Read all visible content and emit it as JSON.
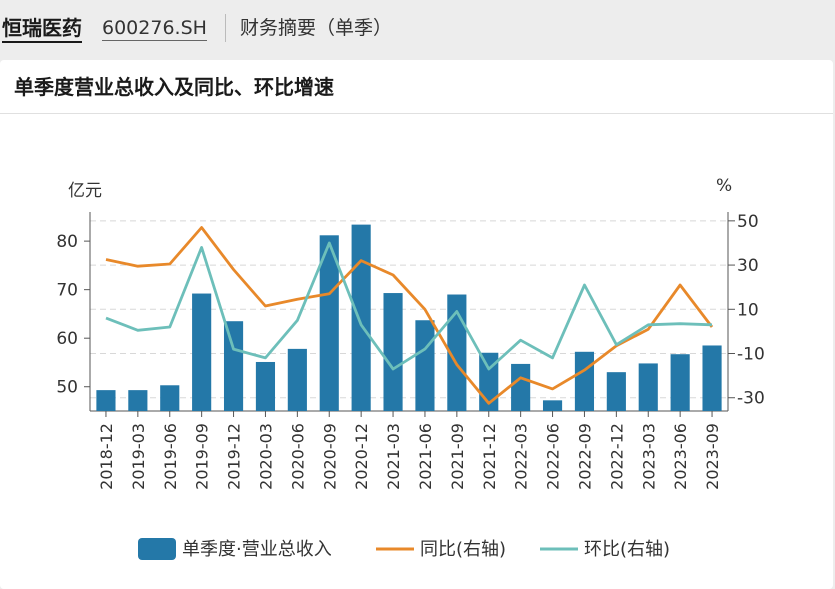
{
  "header": {
    "company": "恒瑞医药",
    "code": "600276.SH",
    "section": "财务摘要（单季）"
  },
  "chart_data": {
    "type": "bar",
    "title": "单季度营业总收入及同比、环比增速",
    "ylabel_left": "亿元",
    "ylabel_right": "%",
    "categories": [
      "2018-12",
      "2019-03",
      "2019-06",
      "2019-09",
      "2019-12",
      "2020-03",
      "2020-06",
      "2020-09",
      "2020-12",
      "2021-03",
      "2021-06",
      "2021-09",
      "2021-12",
      "2022-03",
      "2022-06",
      "2022-09",
      "2022-12",
      "2023-03",
      "2023-06",
      "2023-09"
    ],
    "ylim_left": [
      45,
      86
    ],
    "yticks_left": [
      50,
      60,
      70,
      80
    ],
    "ylim_right": [
      -36,
      54
    ],
    "yticks_right": [
      50,
      30,
      10,
      -10,
      -30
    ],
    "grid": true,
    "legend_position": "bottom",
    "series": [
      {
        "name": "单季度·营业总收入",
        "type": "bar",
        "axis": "left",
        "color": "#2478a8",
        "values": [
          49.3,
          49.3,
          50.3,
          69.2,
          63.5,
          55.1,
          57.8,
          81.2,
          83.4,
          69.3,
          63.7,
          69.0,
          57.0,
          54.7,
          47.2,
          57.2,
          53.0,
          54.8,
          56.7,
          58.5
        ]
      },
      {
        "name": "同比(右轴)",
        "type": "line",
        "axis": "right",
        "color": "#e8892a",
        "values": [
          32.5,
          29.5,
          30.5,
          47.0,
          28.0,
          11.5,
          14.5,
          17.0,
          32.0,
          25.5,
          10.0,
          -15.0,
          -32.5,
          -21.0,
          -26.0,
          -17.5,
          -6.5,
          1.0,
          21.0,
          2.0
        ]
      },
      {
        "name": "环比(右轴)",
        "type": "line",
        "axis": "right",
        "color": "#6dbfba",
        "values": [
          6.0,
          0.5,
          2.0,
          38.0,
          -8.0,
          -12.0,
          5.0,
          40.0,
          3.0,
          -17.0,
          -8.0,
          9.0,
          -17.0,
          -4.0,
          -12.0,
          21.0,
          -6.0,
          3.0,
          3.5,
          3.0
        ]
      }
    ]
  }
}
